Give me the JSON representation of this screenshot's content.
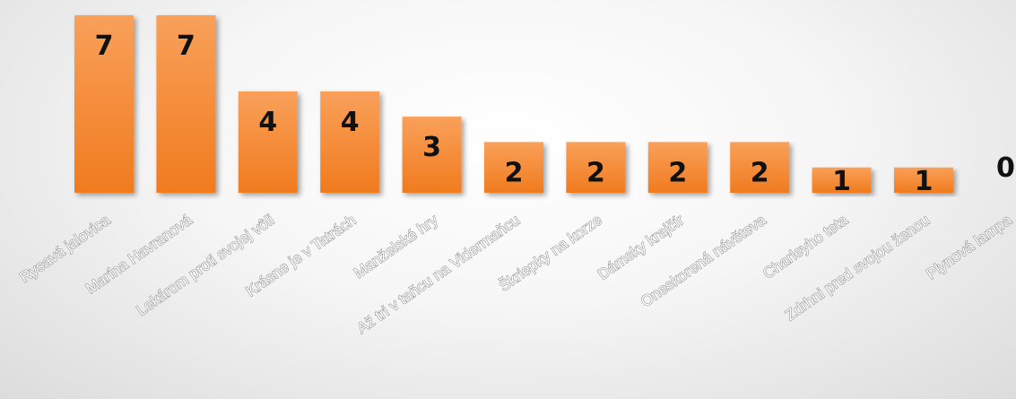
{
  "chart_data": {
    "type": "bar",
    "categories": [
      "Rysavá jalovica",
      "Marína Havranová",
      "Lekárom proti svojej vôli",
      "Krásne je v Tatrách",
      "Manželské hry",
      "Až tri v taňcu na Vidermaňcu",
      "Škriepky na korze",
      "Dámsky krajčír",
      "Oneskorená návšteva",
      "Charleyho teta",
      "Zdrhni pred svojou ženou",
      "Plynová lampa"
    ],
    "values": [
      7,
      7,
      4,
      4,
      3,
      2,
      2,
      2,
      2,
      1,
      1,
      0
    ],
    "data_labels": [
      "7",
      "7",
      "4",
      "4",
      "3",
      "2",
      "2",
      "2",
      "2",
      "1",
      "1",
      "0"
    ],
    "title": "",
    "xlabel": "",
    "ylabel": "",
    "ylim": [
      0,
      7
    ],
    "grid": false,
    "legend": "none",
    "bar_color_top": "#f9a05a",
    "bar_color_bottom": "#f07b1e"
  }
}
